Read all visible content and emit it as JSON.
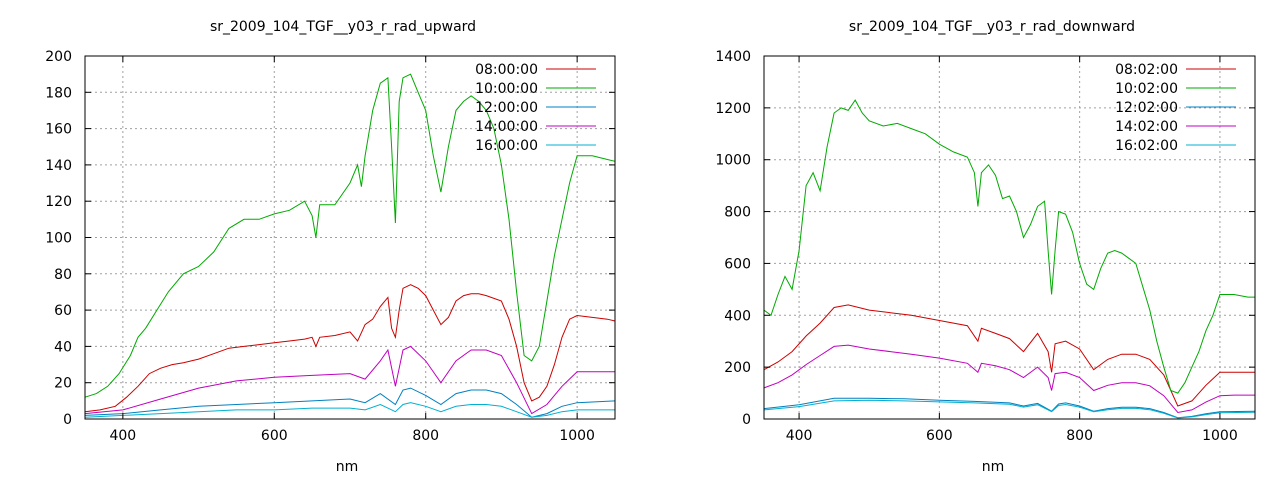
{
  "chart_data": [
    {
      "type": "line",
      "title": "sr_2009_104_TGF__y03_r_rad_upward",
      "xlabel": "nm",
      "ylabel": "",
      "xlim": [
        350,
        1050
      ],
      "ylim": [
        0,
        200
      ],
      "xticks": [
        400,
        600,
        800,
        1000
      ],
      "yticks": [
        0,
        20,
        40,
        60,
        80,
        100,
        120,
        140,
        160,
        180,
        200
      ],
      "grid": true,
      "legend_position": "top-right",
      "series": [
        {
          "name": "08:00:00",
          "color": "#cc0000",
          "x": [
            350,
            370,
            390,
            405,
            420,
            435,
            450,
            465,
            480,
            500,
            520,
            540,
            560,
            580,
            600,
            620,
            640,
            650,
            655,
            660,
            680,
            700,
            710,
            720,
            730,
            740,
            750,
            755,
            760,
            765,
            770,
            780,
            790,
            800,
            810,
            820,
            830,
            840,
            850,
            860,
            870,
            880,
            900,
            910,
            920,
            930,
            940,
            950,
            960,
            970,
            980,
            990,
            1000,
            1020,
            1040,
            1050
          ],
          "y": [
            4,
            5,
            7,
            12,
            18,
            25,
            28,
            30,
            31,
            33,
            36,
            39,
            40,
            41,
            42,
            43,
            44,
            45,
            40,
            45,
            46,
            48,
            43,
            52,
            55,
            62,
            67,
            50,
            45,
            60,
            72,
            74,
            72,
            68,
            60,
            52,
            56,
            65,
            68,
            69,
            69,
            68,
            65,
            55,
            40,
            20,
            10,
            12,
            18,
            30,
            45,
            55,
            57,
            56,
            55,
            54
          ]
        },
        {
          "name": "10:00:00",
          "color": "#00aa00",
          "x": [
            350,
            365,
            380,
            395,
            410,
            420,
            430,
            445,
            460,
            480,
            500,
            520,
            540,
            560,
            580,
            600,
            620,
            640,
            650,
            655,
            660,
            680,
            700,
            710,
            715,
            720,
            730,
            740,
            750,
            755,
            760,
            765,
            770,
            780,
            790,
            800,
            810,
            820,
            830,
            840,
            850,
            860,
            870,
            880,
            890,
            900,
            910,
            920,
            930,
            940,
            950,
            960,
            970,
            980,
            990,
            1000,
            1020,
            1040,
            1050
          ],
          "y": [
            12,
            14,
            18,
            25,
            35,
            45,
            50,
            60,
            70,
            80,
            84,
            92,
            105,
            110,
            110,
            113,
            115,
            120,
            112,
            100,
            118,
            118,
            130,
            140,
            128,
            145,
            170,
            185,
            188,
            150,
            108,
            175,
            188,
            190,
            180,
            170,
            145,
            125,
            150,
            170,
            175,
            178,
            175,
            170,
            160,
            140,
            110,
            70,
            35,
            32,
            40,
            65,
            90,
            110,
            130,
            145,
            145,
            143,
            142
          ]
        },
        {
          "name": "12:00:00",
          "color": "#0080c0",
          "x": [
            350,
            400,
            450,
            500,
            550,
            600,
            650,
            700,
            720,
            740,
            760,
            770,
            780,
            800,
            820,
            840,
            860,
            880,
            900,
            920,
            940,
            960,
            980,
            1000,
            1050
          ],
          "y": [
            2,
            3,
            5,
            7,
            8,
            9,
            10,
            11,
            9,
            14,
            8,
            16,
            17,
            13,
            8,
            14,
            16,
            16,
            14,
            8,
            1,
            3,
            7,
            9,
            10
          ]
        },
        {
          "name": "14:00:00",
          "color": "#c000c0",
          "x": [
            350,
            400,
            450,
            500,
            550,
            600,
            650,
            700,
            720,
            740,
            750,
            760,
            770,
            780,
            800,
            820,
            840,
            860,
            880,
            900,
            920,
            940,
            960,
            980,
            1000,
            1050
          ],
          "y": [
            3,
            5,
            11,
            17,
            21,
            23,
            24,
            25,
            22,
            32,
            38,
            18,
            38,
            40,
            32,
            20,
            32,
            38,
            38,
            35,
            20,
            3,
            8,
            18,
            26,
            26
          ]
        },
        {
          "name": "16:00:00",
          "color": "#00b0d0",
          "x": [
            350,
            400,
            450,
            500,
            550,
            600,
            650,
            700,
            720,
            740,
            760,
            770,
            780,
            800,
            820,
            840,
            860,
            880,
            900,
            920,
            940,
            960,
            980,
            1000,
            1050
          ],
          "y": [
            1,
            2,
            3,
            4,
            5,
            5,
            6,
            6,
            5,
            8,
            4,
            8,
            9,
            7,
            4,
            7,
            8,
            8,
            7,
            4,
            1,
            2,
            4,
            5,
            5
          ]
        }
      ]
    },
    {
      "type": "line",
      "title": "sr_2009_104_TGF__y03_r_rad_downward",
      "xlabel": "nm",
      "ylabel": "",
      "xlim": [
        350,
        1050
      ],
      "ylim": [
        0,
        1400
      ],
      "xticks": [
        400,
        600,
        800,
        1000
      ],
      "yticks": [
        0,
        200,
        400,
        600,
        800,
        1000,
        1200,
        1400
      ],
      "grid": true,
      "legend_position": "top-right",
      "series": [
        {
          "name": "08:02:00",
          "color": "#cc0000",
          "x": [
            350,
            370,
            390,
            410,
            430,
            450,
            470,
            500,
            530,
            560,
            600,
            640,
            655,
            660,
            680,
            700,
            720,
            740,
            755,
            760,
            765,
            780,
            800,
            820,
            840,
            860,
            880,
            900,
            920,
            940,
            960,
            980,
            1000,
            1020,
            1050
          ],
          "y": [
            190,
            220,
            260,
            320,
            370,
            430,
            440,
            420,
            410,
            400,
            380,
            360,
            300,
            350,
            330,
            310,
            260,
            330,
            260,
            180,
            290,
            300,
            270,
            190,
            230,
            250,
            250,
            230,
            170,
            50,
            70,
            130,
            180,
            180,
            180
          ]
        },
        {
          "name": "10:02:00",
          "color": "#00aa00",
          "x": [
            350,
            360,
            370,
            380,
            390,
            400,
            410,
            420,
            430,
            440,
            450,
            460,
            470,
            480,
            490,
            500,
            520,
            540,
            560,
            580,
            600,
            620,
            640,
            650,
            655,
            660,
            670,
            680,
            690,
            700,
            710,
            720,
            730,
            740,
            750,
            755,
            760,
            765,
            770,
            780,
            790,
            800,
            810,
            820,
            830,
            840,
            850,
            860,
            870,
            880,
            900,
            910,
            920,
            930,
            940,
            950,
            960,
            970,
            980,
            990,
            1000,
            1020,
            1040,
            1050
          ],
          "y": [
            420,
            400,
            480,
            550,
            500,
            650,
            900,
            950,
            880,
            1050,
            1180,
            1200,
            1190,
            1230,
            1180,
            1150,
            1130,
            1140,
            1120,
            1100,
            1060,
            1030,
            1010,
            950,
            820,
            950,
            980,
            940,
            850,
            860,
            800,
            700,
            750,
            820,
            840,
            650,
            480,
            650,
            800,
            790,
            720,
            600,
            520,
            500,
            580,
            640,
            650,
            640,
            620,
            600,
            420,
            300,
            200,
            110,
            100,
            140,
            200,
            260,
            340,
            400,
            480,
            480,
            470,
            470
          ]
        },
        {
          "name": "12:02:00",
          "color": "#0080c0",
          "x": [
            350,
            400,
            450,
            500,
            550,
            600,
            650,
            700,
            720,
            740,
            760,
            770,
            780,
            800,
            820,
            840,
            860,
            880,
            900,
            920,
            940,
            960,
            980,
            1000,
            1050
          ],
          "y": [
            40,
            55,
            80,
            80,
            78,
            72,
            68,
            62,
            50,
            60,
            30,
            58,
            62,
            50,
            30,
            40,
            45,
            45,
            40,
            25,
            5,
            10,
            20,
            28,
            30
          ]
        },
        {
          "name": "14:02:00",
          "color": "#c000c0",
          "x": [
            350,
            370,
            390,
            410,
            430,
            450,
            470,
            500,
            530,
            560,
            600,
            640,
            655,
            660,
            680,
            700,
            720,
            740,
            755,
            760,
            765,
            780,
            800,
            820,
            840,
            860,
            880,
            900,
            920,
            940,
            960,
            980,
            1000,
            1020,
            1050
          ],
          "y": [
            120,
            140,
            170,
            210,
            245,
            280,
            285,
            270,
            260,
            250,
            235,
            215,
            180,
            215,
            205,
            190,
            160,
            200,
            160,
            110,
            175,
            180,
            160,
            110,
            130,
            140,
            140,
            128,
            90,
            25,
            35,
            65,
            90,
            92,
            92
          ]
        },
        {
          "name": "16:02:00",
          "color": "#00b0d0",
          "x": [
            350,
            400,
            450,
            500,
            550,
            600,
            650,
            700,
            720,
            740,
            760,
            770,
            780,
            800,
            820,
            840,
            860,
            880,
            900,
            920,
            940,
            960,
            980,
            1000,
            1050
          ],
          "y": [
            35,
            48,
            70,
            72,
            70,
            66,
            62,
            57,
            46,
            55,
            28,
            52,
            56,
            46,
            28,
            36,
            41,
            41,
            36,
            22,
            4,
            8,
            17,
            24,
            26
          ]
        }
      ]
    }
  ]
}
